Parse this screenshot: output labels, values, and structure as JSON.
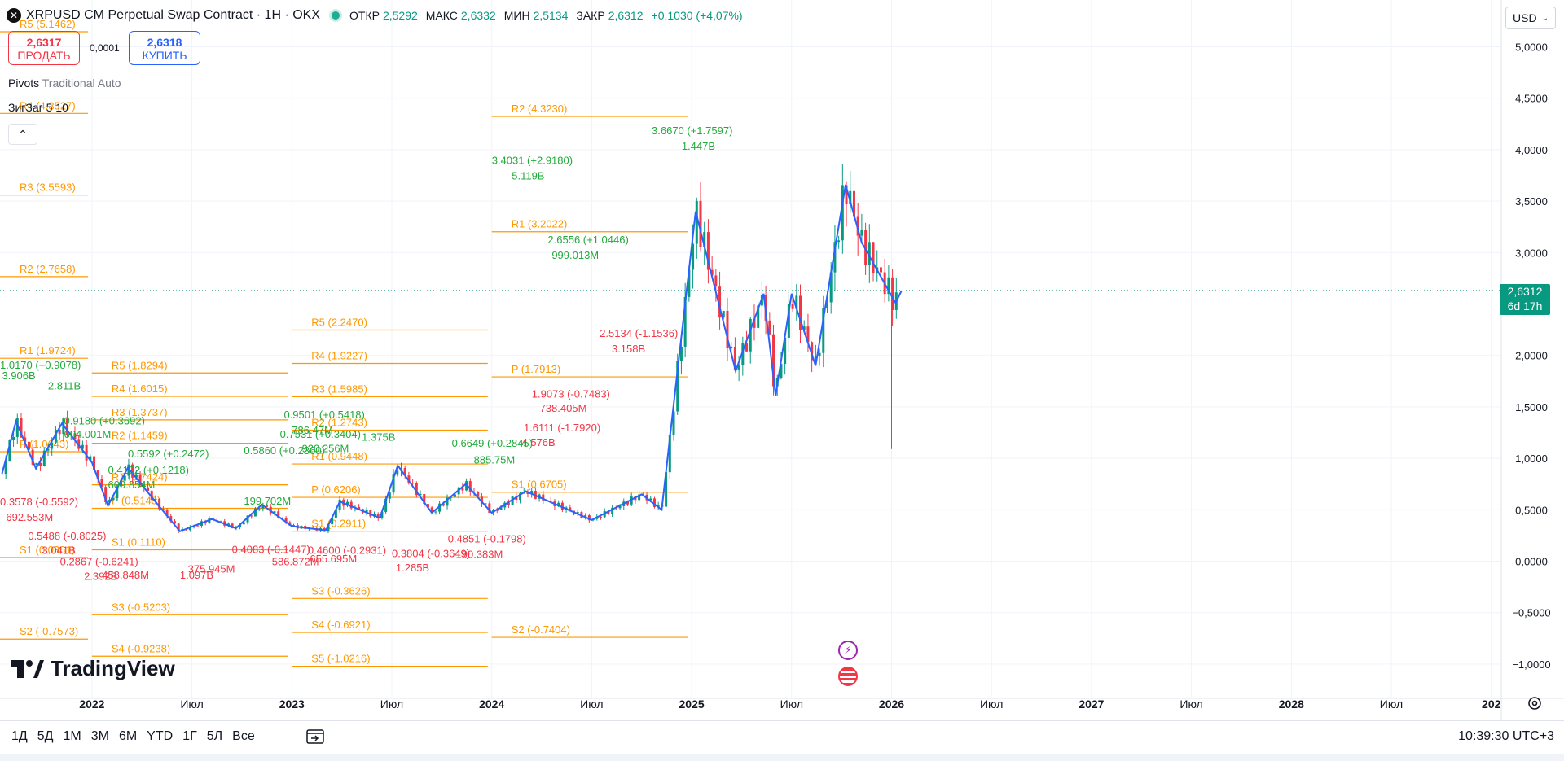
{
  "header": {
    "symbol_title": "XRPUSD CM Perpetual Swap Contract · 1H · OKX",
    "open_label": "ОТКР",
    "open": "2,5292",
    "high_label": "МАКС",
    "high": "2,6332",
    "low_label": "МИН",
    "low": "2,5134",
    "close_label": "ЗАКР",
    "close": "2,6312",
    "change": "+0,1030 (+4,07%)"
  },
  "trade": {
    "sell_price": "2,6317",
    "sell_label": "ПРОДАТЬ",
    "spread": "0,0001",
    "buy_price": "2,6318",
    "buy_label": "КУПИТЬ"
  },
  "indicators": {
    "pivots_name": "Pivots",
    "pivots_params": "Traditional Auto",
    "zigzag_name": "ЗигЗаг",
    "zigzag_params": "5 10"
  },
  "currency": "USD",
  "last_price": {
    "value": "2,6312",
    "countdown": "6d 17h"
  },
  "bottom": {
    "ranges": [
      "1Д",
      "5Д",
      "1М",
      "3М",
      "6М",
      "YTD",
      "1Г",
      "5Л",
      "Все"
    ],
    "clock": "10:39:30 UTC+3"
  },
  "brand": "TradingView",
  "colors": {
    "up": "#089981",
    "down": "#f23645",
    "pivot": "#ff9800",
    "zigzag": "#2962ff",
    "label_up": "#22ab3b"
  },
  "chart_data": {
    "type": "candlestick",
    "y_axis": {
      "ticks": [
        "5,0000",
        "4,5000",
        "4,0000",
        "3,5000",
        "3,0000",
        "2,5000",
        "2,0000",
        "1,5000",
        "1,0000",
        "0,5000",
        "0,0000",
        "−0,5000",
        "−1,0000"
      ],
      "tick_values": [
        5,
        4.5,
        4,
        3.5,
        3,
        2.5,
        2,
        1.5,
        1,
        0.5,
        0,
        -0.5,
        -1
      ],
      "range": [
        -1.1,
        5.2
      ]
    },
    "x_axis": {
      "ticks": [
        "2022",
        "Июл",
        "2023",
        "Июл",
        "2024",
        "Июл",
        "2025",
        "Июл",
        "2026",
        "Июл",
        "2027",
        "Июл",
        "2028",
        "Июл",
        "202"
      ],
      "tick_positions": [
        2022.0,
        2022.5,
        2023.0,
        2023.5,
        2024.0,
        2024.5,
        2025.0,
        2025.5,
        2026.0,
        2026.5,
        2027.0,
        2027.5,
        2028.0,
        2028.5,
        2029.0
      ],
      "range": [
        2021.54,
        2029.05
      ]
    },
    "last_price": 2.6312,
    "series_zigzag": [
      [
        2021.55,
        0.85
      ],
      [
        2021.62,
        1.36
      ],
      [
        2021.72,
        0.9
      ],
      [
        2021.85,
        1.34
      ],
      [
        2022.0,
        0.96
      ],
      [
        2022.08,
        0.54
      ],
      [
        2022.18,
        0.91
      ],
      [
        2022.3,
        0.62
      ],
      [
        2022.44,
        0.29
      ],
      [
        2022.6,
        0.41
      ],
      [
        2022.72,
        0.32
      ],
      [
        2022.85,
        0.55
      ],
      [
        2023.0,
        0.34
      ],
      [
        2023.17,
        0.3
      ],
      [
        2023.24,
        0.58
      ],
      [
        2023.44,
        0.42
      ],
      [
        2023.53,
        0.93
      ],
      [
        2023.7,
        0.47
      ],
      [
        2023.87,
        0.75
      ],
      [
        2024.0,
        0.47
      ],
      [
        2024.17,
        0.68
      ],
      [
        2024.5,
        0.4
      ],
      [
        2024.75,
        0.65
      ],
      [
        2024.85,
        0.5
      ],
      [
        2025.02,
        3.4
      ],
      [
        2025.22,
        1.85
      ],
      [
        2025.36,
        2.6
      ],
      [
        2025.42,
        1.61
      ],
      [
        2025.5,
        2.6
      ],
      [
        2025.62,
        1.9
      ],
      [
        2025.77,
        3.66
      ],
      [
        2025.85,
        3.1
      ],
      [
        2026.02,
        2.51
      ],
      [
        2026.05,
        2.63
      ]
    ],
    "pivot_sets": [
      {
        "x": [
          2021.54,
          2021.98
        ],
        "levels": [
          {
            "label": "R5 (5.1462)",
            "value": 5.1462
          },
          {
            "label": "R4 (4.3527)",
            "value": 4.3527
          },
          {
            "label": "R3 (3.5593)",
            "value": 3.5593
          },
          {
            "label": "R2 (2.7658)",
            "value": 2.7658
          },
          {
            "label": "R1 (1.9724)",
            "value": 1.9724
          },
          {
            "label": "P (1.0643)",
            "value": 1.0643
          },
          {
            "label": "S1 (0.0361)",
            "value": 0.0361
          },
          {
            "label": "S2 (-0.7573)",
            "value": -0.7573
          }
        ]
      },
      {
        "x": [
          2022.0,
          2022.98
        ],
        "levels": [
          {
            "label": "R5 (1.8294)",
            "value": 1.8294
          },
          {
            "label": "R4 (1.6015)",
            "value": 1.6015
          },
          {
            "label": "R3 (1.3737)",
            "value": 1.3737
          },
          {
            "label": "R2 (1.1459)",
            "value": 1.1459
          },
          {
            "label": "R1 (0.7424)",
            "value": 0.7424
          },
          {
            "label": "P (0.5145)",
            "value": 0.5145
          },
          {
            "label": "S1 (0.1110)",
            "value": 0.111
          },
          {
            "label": "S3 (-0.5203)",
            "value": -0.5203
          },
          {
            "label": "S4 (-0.9238)",
            "value": -0.9238
          }
        ]
      },
      {
        "x": [
          2023.0,
          2023.98
        ],
        "levels": [
          {
            "label": "R5 (2.2470)",
            "value": 2.247
          },
          {
            "label": "R4 (1.9227)",
            "value": 1.9227
          },
          {
            "label": "R3 (1.5985)",
            "value": 1.5985
          },
          {
            "label": "R2 (1.2743)",
            "value": 1.2743
          },
          {
            "label": "R1 (0.9448)",
            "value": 0.9448
          },
          {
            "label": "P (0.6206)",
            "value": 0.6206
          },
          {
            "label": "S1 (0.2911)",
            "value": 0.2911
          },
          {
            "label": "S3 (-0.3626)",
            "value": -0.3626
          },
          {
            "label": "S4 (-0.6921)",
            "value": -0.6921
          },
          {
            "label": "S5 (-1.0216)",
            "value": -1.0216
          }
        ]
      },
      {
        "x": [
          2024.0,
          2024.98
        ],
        "levels": [
          {
            "label": "R2 (4.3230)",
            "value": 4.323
          },
          {
            "label": "R1 (3.2022)",
            "value": 3.2022
          },
          {
            "label": "P (1.7913)",
            "value": 1.7913
          },
          {
            "label": "S1 (0.6705)",
            "value": 0.6705
          },
          {
            "label": "S2 (-0.7404)",
            "value": -0.7404
          }
        ]
      }
    ],
    "zigzag_labels": [
      {
        "x": 2021.54,
        "y": 1.87,
        "text": "1.0170 (+0.9078)",
        "t": "up"
      },
      {
        "x": 2021.55,
        "y": 1.77,
        "text": "3.906B",
        "t": "up"
      },
      {
        "x": 2021.78,
        "y": 1.67,
        "text": "2.811B",
        "t": "up"
      },
      {
        "x": 2021.86,
        "y": 1.33,
        "text": "0.9180 (+0.3692)",
        "t": "up"
      },
      {
        "x": 2021.86,
        "y": 1.2,
        "text": "604.001M",
        "t": "up"
      },
      {
        "x": 2022.08,
        "y": 0.85,
        "text": "0.4102 (+0.1218)",
        "t": "up"
      },
      {
        "x": 2022.08,
        "y": 0.71,
        "text": "609.854M",
        "t": "up"
      },
      {
        "x": 2022.18,
        "y": 1.01,
        "text": "0.5592 (+0.2472)",
        "t": "up"
      },
      {
        "x": 2022.76,
        "y": 0.55,
        "text": "199.702M",
        "t": "up"
      },
      {
        "x": 2022.76,
        "y": 1.04,
        "text": "0.5860 (+0.2360)",
        "t": "up"
      },
      {
        "x": 2022.96,
        "y": 1.39,
        "text": "0.9501 (+0.5418)",
        "t": "up"
      },
      {
        "x": 2023.0,
        "y": 1.24,
        "text": "786.47M",
        "t": "up"
      },
      {
        "x": 2022.94,
        "y": 1.2,
        "text": "0.7531 (+0.3404)",
        "t": "up"
      },
      {
        "x": 2023.05,
        "y": 1.06,
        "text": "920.256M",
        "t": "up"
      },
      {
        "x": 2023.35,
        "y": 1.17,
        "text": "1.375B",
        "t": "up"
      },
      {
        "x": 2023.8,
        "y": 1.11,
        "text": "0.6649 (+0.2845)",
        "t": "up"
      },
      {
        "x": 2023.91,
        "y": 0.95,
        "text": "885.75M",
        "t": "up"
      },
      {
        "x": 2024.0,
        "y": 3.86,
        "text": "3.4031 (+2.9180)",
        "t": "up"
      },
      {
        "x": 2024.1,
        "y": 3.71,
        "text": "5.119B",
        "t": "up"
      },
      {
        "x": 2024.28,
        "y": 3.09,
        "text": "2.6556 (+1.0446)",
        "t": "up"
      },
      {
        "x": 2024.3,
        "y": 2.94,
        "text": "999.013M",
        "t": "up"
      },
      {
        "x": 2024.8,
        "y": 4.15,
        "text": "3.6670 (+1.7597)",
        "t": "up"
      },
      {
        "x": 2024.95,
        "y": 4.0,
        "text": "1.447B",
        "t": "up"
      },
      {
        "x": 2021.54,
        "y": 0.54,
        "text": "0.3578 (-0.5592)",
        "t": "down"
      },
      {
        "x": 2021.57,
        "y": 0.39,
        "text": "692.553M",
        "t": "down"
      },
      {
        "x": 2021.68,
        "y": 0.21,
        "text": "0.5488 (-0.8025)",
        "t": "down"
      },
      {
        "x": 2021.75,
        "y": 0.07,
        "text": "3.041B",
        "t": "down"
      },
      {
        "x": 2021.84,
        "y": -0.04,
        "text": "0.2867 (-0.6241)",
        "t": "down"
      },
      {
        "x": 2021.96,
        "y": -0.18,
        "text": "2.392B",
        "t": "down"
      },
      {
        "x": 2022.05,
        "y": -0.17,
        "text": "458.848M",
        "t": "down"
      },
      {
        "x": 2022.44,
        "y": -0.17,
        "text": "1.097B",
        "t": "down"
      },
      {
        "x": 2022.48,
        "y": -0.11,
        "text": "375.945M",
        "t": "down"
      },
      {
        "x": 2022.7,
        "y": 0.08,
        "text": "0.4083 (-0.1447)",
        "t": "down"
      },
      {
        "x": 2022.9,
        "y": -0.04,
        "text": "586.872M",
        "t": "down"
      },
      {
        "x": 2023.08,
        "y": 0.07,
        "text": "0.4600 (-0.2931)",
        "t": "down"
      },
      {
        "x": 2023.09,
        "y": -0.01,
        "text": "655.695M",
        "t": "down"
      },
      {
        "x": 2023.5,
        "y": 0.04,
        "text": "0.3804 (-0.3649)",
        "t": "down"
      },
      {
        "x": 2023.52,
        "y": -0.1,
        "text": "1.285B",
        "t": "down"
      },
      {
        "x": 2023.78,
        "y": 0.18,
        "text": "0.4851 (-0.1798)",
        "t": "down"
      },
      {
        "x": 2023.82,
        "y": 0.03,
        "text": "190.383M",
        "t": "down"
      },
      {
        "x": 2024.16,
        "y": 1.26,
        "text": "1.6111 (-1.7920)",
        "t": "down"
      },
      {
        "x": 2024.15,
        "y": 1.12,
        "text": "4.576B",
        "t": "down"
      },
      {
        "x": 2024.2,
        "y": 1.59,
        "text": "1.9073 (-0.7483)",
        "t": "down"
      },
      {
        "x": 2024.24,
        "y": 1.45,
        "text": "738.405M",
        "t": "down"
      },
      {
        "x": 2024.54,
        "y": 2.18,
        "text": "2.5134 (-1.1536)",
        "t": "down"
      },
      {
        "x": 2024.6,
        "y": 2.03,
        "text": "3.158B",
        "t": "down"
      }
    ]
  }
}
